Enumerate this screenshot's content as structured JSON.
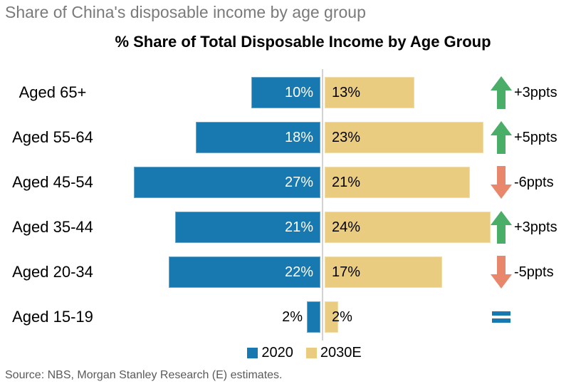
{
  "header": {
    "title": "Share of China's disposable income by age group"
  },
  "chart": {
    "title": "% Share of Total Disposable Income by Age Group",
    "source": "Source: NBS, Morgan Stanley Research (E) estimates.",
    "legend": [
      {
        "label": "2020",
        "color": "#1779af"
      },
      {
        "label": "2030E",
        "color": "#eacc80"
      }
    ]
  },
  "chart_data": {
    "type": "bar",
    "orientation": "horizontal-diverging",
    "title": "% Share of Total Disposable Income by Age Group",
    "xlabel": "",
    "ylabel": "",
    "categories": [
      "Aged 65+",
      "Aged 55-64",
      "Aged 45-54",
      "Aged 35-44",
      "Aged 20-34",
      "Aged 15-19"
    ],
    "series": [
      {
        "name": "2020",
        "color": "#1779af",
        "values": [
          10,
          18,
          27,
          21,
          22,
          2
        ]
      },
      {
        "name": "2030E",
        "color": "#eacc80",
        "values": [
          13,
          23,
          21,
          24,
          17,
          2
        ]
      }
    ],
    "value_suffix": "%",
    "changes": [
      {
        "text": "+3ppts",
        "direction": "up"
      },
      {
        "text": "+5ppts",
        "direction": "up"
      },
      {
        "text": "-6ppts",
        "direction": "down"
      },
      {
        "text": "+3ppts",
        "direction": "up"
      },
      {
        "text": "-5ppts",
        "direction": "down"
      },
      {
        "text": "",
        "direction": "equal"
      }
    ],
    "colors": {
      "up": "#4aad68",
      "down": "#e8876b",
      "equal": "#1779af",
      "divider": "#d2d2d2"
    },
    "legend_position": "bottom",
    "grid": false
  }
}
